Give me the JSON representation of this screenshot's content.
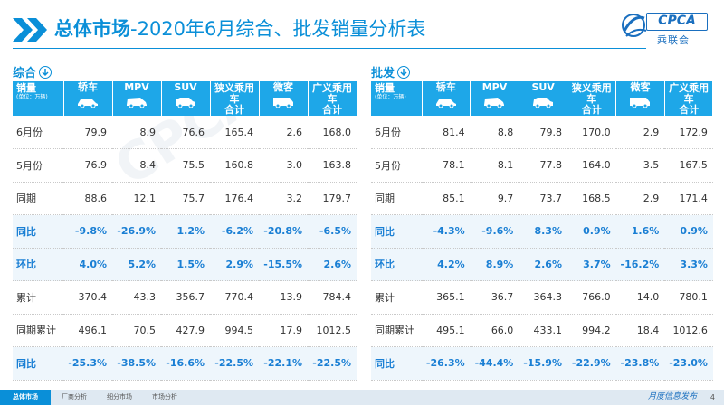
{
  "header": {
    "title_bold": "总体市场",
    "title_rest": "-2020年6月综合、批发销量分析表"
  },
  "logo": {
    "brand": "CPCA",
    "sub": "乘联会"
  },
  "watermark": "CPCA",
  "left_table": {
    "section_label": "综合",
    "header_first": "销量",
    "header_unit": "(单位：万辆)",
    "columns": [
      "轿车",
      "MPV",
      "SUV",
      "狭义乘用车\n合计",
      "微客",
      "广义乘用车\n合计"
    ],
    "rows": [
      {
        "label": "6月份",
        "type": "num",
        "values": [
          "79.9",
          "8.9",
          "76.6",
          "165.4",
          "2.6",
          "168.0"
        ]
      },
      {
        "label": "5月份",
        "type": "num",
        "values": [
          "76.9",
          "8.4",
          "75.5",
          "160.8",
          "3.0",
          "163.8"
        ]
      },
      {
        "label": "同期",
        "type": "num",
        "values": [
          "88.6",
          "12.1",
          "75.7",
          "176.4",
          "3.2",
          "179.7"
        ]
      },
      {
        "label": "同比",
        "type": "pct",
        "values": [
          "-9.8%",
          "-26.9%",
          "1.2%",
          "-6.2%",
          "-20.8%",
          "-6.5%"
        ]
      },
      {
        "label": "环比",
        "type": "pct",
        "values": [
          "4.0%",
          "5.2%",
          "1.5%",
          "2.9%",
          "-15.5%",
          "2.6%"
        ]
      },
      {
        "label": "累计",
        "type": "num",
        "values": [
          "370.4",
          "43.3",
          "356.7",
          "770.4",
          "13.9",
          "784.4"
        ]
      },
      {
        "label": "同期累计",
        "type": "num",
        "values": [
          "496.1",
          "70.5",
          "427.9",
          "994.5",
          "17.9",
          "1012.5"
        ]
      },
      {
        "label": "同比",
        "type": "pct",
        "values": [
          "-25.3%",
          "-38.5%",
          "-16.6%",
          "-22.5%",
          "-22.1%",
          "-22.5%"
        ]
      }
    ]
  },
  "right_table": {
    "section_label": "批发",
    "header_first": "销量",
    "header_unit": "(单位：万辆)",
    "columns": [
      "轿车",
      "MPV",
      "SUV",
      "狭义乘用车\n合计",
      "微客",
      "广义乘用车\n合计"
    ],
    "rows": [
      {
        "label": "6月份",
        "type": "num",
        "values": [
          "81.4",
          "8.8",
          "79.8",
          "170.0",
          "2.9",
          "172.9"
        ]
      },
      {
        "label": "5月份",
        "type": "num",
        "values": [
          "78.1",
          "8.1",
          "77.8",
          "164.0",
          "3.5",
          "167.5"
        ]
      },
      {
        "label": "同期",
        "type": "num",
        "values": [
          "85.1",
          "9.7",
          "73.7",
          "168.5",
          "2.9",
          "171.4"
        ]
      },
      {
        "label": "同比",
        "type": "pct",
        "values": [
          "-4.3%",
          "-9.6%",
          "8.3%",
          "0.9%",
          "1.6%",
          "0.9%"
        ]
      },
      {
        "label": "环比",
        "type": "pct",
        "values": [
          "4.2%",
          "8.9%",
          "2.6%",
          "3.7%",
          "-16.2%",
          "3.3%"
        ]
      },
      {
        "label": "累计",
        "type": "num",
        "values": [
          "365.1",
          "36.7",
          "364.3",
          "766.0",
          "14.0",
          "780.1"
        ]
      },
      {
        "label": "同期累计",
        "type": "num",
        "values": [
          "495.1",
          "66.0",
          "433.1",
          "994.2",
          "18.4",
          "1012.6"
        ]
      },
      {
        "label": "同比",
        "type": "pct",
        "values": [
          "-26.3%",
          "-44.4%",
          "-15.9%",
          "-22.9%",
          "-23.8%",
          "-23.0%"
        ]
      }
    ]
  },
  "footer": {
    "tabs": [
      "总体市场",
      "厂商分析",
      "细分市场",
      "市场分析"
    ],
    "slogan": "月度信息发布",
    "page": "4"
  },
  "colors": {
    "accent": "#0a8fd8",
    "header_bg": "#1ea7e8",
    "pct_text": "#1a7fd4"
  }
}
